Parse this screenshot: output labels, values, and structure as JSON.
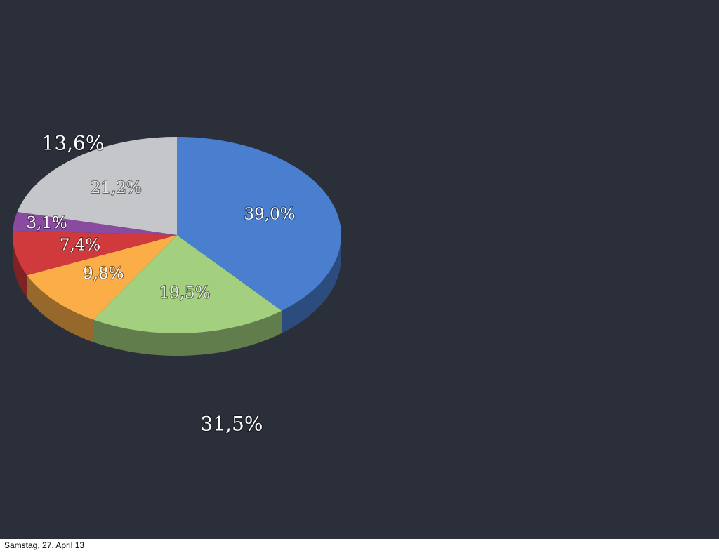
{
  "chart_data": {
    "type": "pie",
    "values": [
      39.0,
      19.5,
      9.8,
      7.4,
      3.1,
      21.2
    ],
    "value_labels": [
      "39,0%",
      "19,5%",
      "9,8%",
      "7,4%",
      "3,1%",
      "21,2%"
    ],
    "colors": [
      "#4a7fd0",
      "#a3d07e",
      "#fbad47",
      "#d03a3c",
      "#8a4aa0",
      "#c4c6c9"
    ],
    "annotations": [
      "13,6%",
      "31,5%"
    ]
  },
  "footer": "Samstag, 27. April 13"
}
